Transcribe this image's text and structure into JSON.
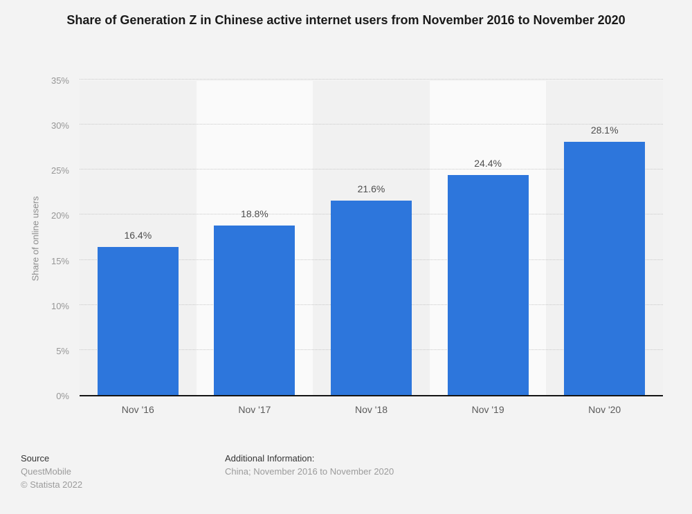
{
  "page": {
    "background": "#f3f3f3"
  },
  "chart_data": {
    "type": "bar",
    "title": "Share of Generation Z in Chinese active internet users from November 2016 to November 2020",
    "categories": [
      "Nov '16",
      "Nov '17",
      "Nov '18",
      "Nov '19",
      "Nov '20"
    ],
    "values": [
      16.4,
      18.8,
      21.6,
      24.4,
      28.1
    ],
    "value_labels": [
      "16.4%",
      "18.8%",
      "21.6%",
      "24.4%",
      "28.1%"
    ],
    "xlabel": "",
    "ylabel": "Share of online users",
    "ylim": [
      0,
      35
    ],
    "ytick_step": 5,
    "ytick_labels": [
      "0%",
      "5%",
      "10%",
      "15%",
      "20%",
      "25%",
      "30%",
      "35%"
    ],
    "grid": "horizontal-dotted",
    "legend": "none",
    "bar_color": "#2d76dc",
    "band_colors": [
      "#f1f1f1",
      "#fafafa"
    ]
  },
  "footer": {
    "source_label": "Source",
    "source_name": "QuestMobile",
    "copyright": "© Statista 2022",
    "additional_label": "Additional Information:",
    "additional_text": "China; November 2016 to November 2020"
  }
}
